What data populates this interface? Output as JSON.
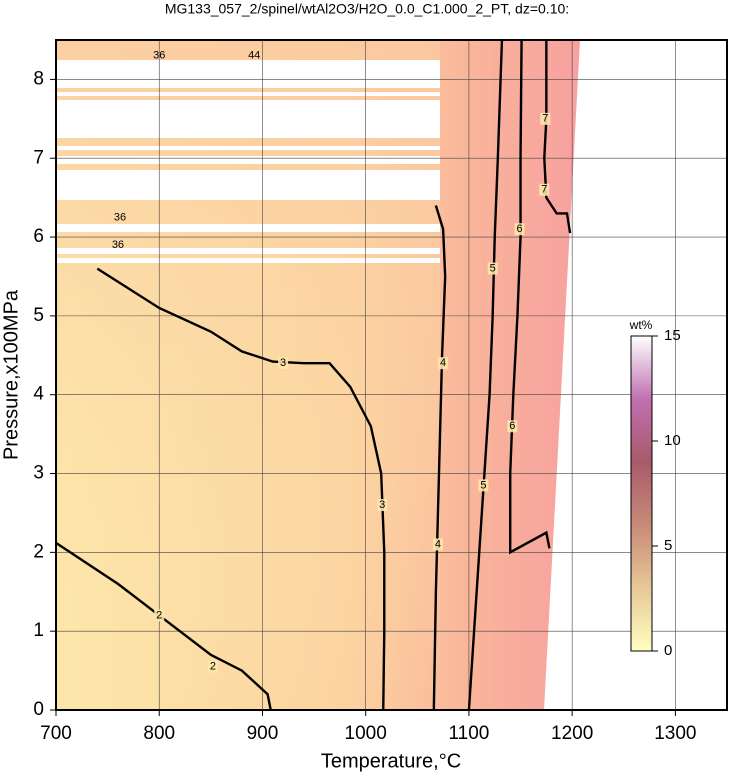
{
  "chart_data": {
    "type": "contour",
    "title": "MG133_057_2/spinel/wtAl2O3/H2O_0.0_C1.000_2_PT, dz=0.10:",
    "x_label": "Temperature,°C",
    "y_label": "Pressure,x100MPa",
    "xlim": [
      700,
      1350
    ],
    "ylim": [
      0,
      8.5
    ],
    "xticks": [
      700,
      800,
      900,
      1000,
      1100,
      1200,
      1300
    ],
    "yticks": [
      0,
      1,
      2,
      3,
      4,
      5,
      6,
      7,
      8
    ],
    "grid": true,
    "line_color": "#000000",
    "contours": [
      {
        "level": 2,
        "x": [
          700,
          760,
          800,
          850,
          880,
          905,
          908
        ],
        "y": [
          2.12,
          1.6,
          1.2,
          0.7,
          0.5,
          0.2,
          0
        ],
        "labels": [
          {
            "text": "2",
            "x": 800,
            "y": 1.2
          },
          {
            "text": "2",
            "x": 852,
            "y": 0.55
          }
        ]
      },
      {
        "level": 3,
        "x": [
          740,
          800,
          850,
          880,
          910,
          940,
          965,
          985,
          1005,
          1015,
          1018,
          1018,
          1017
        ],
        "y": [
          5.6,
          5.1,
          4.8,
          4.55,
          4.42,
          4.4,
          4.4,
          4.1,
          3.6,
          3.0,
          2.0,
          1.0,
          0
        ],
        "labels": [
          {
            "text": "3",
            "x": 920,
            "y": 4.4
          },
          {
            "text": "3",
            "x": 1016,
            "y": 2.6
          }
        ]
      },
      {
        "level": 4,
        "x": [
          1068,
          1075,
          1077,
          1074,
          1072,
          1070,
          1068,
          1066
        ],
        "y": [
          6.4,
          6.1,
          5.5,
          4.5,
          3.5,
          2.5,
          1.5,
          0
        ],
        "labels": [
          {
            "text": "4",
            "x": 1075,
            "y": 4.4
          },
          {
            "text": "4",
            "x": 1070,
            "y": 2.1
          }
        ]
      },
      {
        "level": 5,
        "x": [
          1100,
          1105,
          1110,
          1115,
          1120,
          1123,
          1125,
          1128,
          1132
        ],
        "y": [
          0,
          1,
          2,
          3,
          4,
          5,
          6,
          7,
          8.5
        ],
        "labels": [
          {
            "text": "5",
            "x": 1123,
            "y": 5.6
          },
          {
            "text": "5",
            "x": 1114,
            "y": 2.85
          }
        ]
      },
      {
        "level": 6,
        "x": [
          1178,
          1175,
          1140,
          1140,
          1143,
          1147,
          1150,
          1150,
          1151
        ],
        "y": [
          2.05,
          2.25,
          2.0,
          3,
          4,
          5,
          6,
          7,
          8.5
        ],
        "labels": [
          {
            "text": "6",
            "x": 1149,
            "y": 6.1
          },
          {
            "text": "6",
            "x": 1142,
            "y": 3.6
          }
        ]
      },
      {
        "level": 7,
        "x": [
          1198,
          1195,
          1185,
          1175,
          1173,
          1175,
          1175
        ],
        "y": [
          6.05,
          6.3,
          6.3,
          6.5,
          7,
          7.5,
          8.5
        ],
        "labels": [
          {
            "text": "7",
            "x": 1174,
            "y": 7.5
          },
          {
            "text": "7",
            "x": 1173,
            "y": 6.6
          }
        ]
      }
    ],
    "annotations": [
      {
        "text": "36",
        "x": 800,
        "y": 8.3
      },
      {
        "text": "44",
        "x": 892,
        "y": 8.3
      },
      {
        "text": "36",
        "x": 762,
        "y": 6.25
      },
      {
        "text": "36",
        "x": 760,
        "y": 5.9
      }
    ],
    "colorbar": {
      "label": "wt%",
      "lim": [
        0,
        15
      ],
      "ticks": [
        0,
        5,
        10,
        15
      ],
      "colors": [
        "#ffffc0",
        "#e8c898",
        "#c88a78",
        "#a85a6a",
        "#c070b0",
        "#ffffff"
      ]
    }
  }
}
